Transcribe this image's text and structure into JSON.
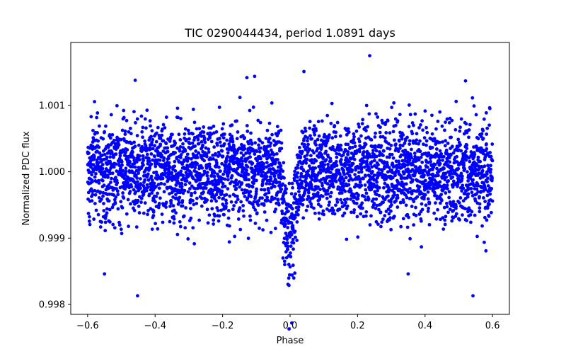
{
  "chart_data": {
    "type": "scatter",
    "title": "TIC 0290044434, period 1.0891 days",
    "xlabel": "Phase",
    "ylabel": "Normalized PDC flux",
    "xlim": [
      -0.65,
      0.65
    ],
    "ylim": [
      0.99785,
      1.00195
    ],
    "xticks": [
      -0.6,
      -0.4,
      -0.2,
      0.0,
      0.2,
      0.4,
      0.6
    ],
    "xtick_labels": [
      "−0.6",
      "−0.4",
      "−0.2",
      "0.0",
      "0.2",
      "0.4",
      "0.6"
    ],
    "yticks": [
      0.998,
      0.999,
      1.0,
      1.001
    ],
    "ytick_labels": [
      "0.998",
      "0.999",
      "1.000",
      "1.001"
    ],
    "grid": false,
    "series": [
      {
        "color": "#0000ff",
        "marker": "circle",
        "phase_range": [
          -0.6,
          0.6
        ],
        "baseline_flux": 1.0,
        "scatter_sd": 0.00036,
        "transit": {
          "center_phase": 0.0,
          "depth": 0.00115,
          "half_width_phase": 0.04,
          "min_flux_observed": 0.99763
        },
        "notable_points": [
          {
            "x": 0.236,
            "y": 1.00175
          },
          {
            "x": -0.105,
            "y": 1.00144
          },
          {
            "x": -0.128,
            "y": 1.00142
          },
          {
            "x": -0.459,
            "y": 1.00138
          },
          {
            "x": 0.52,
            "y": 1.00137
          },
          {
            "x": -0.003,
            "y": 0.99763
          },
          {
            "x": 0.005,
            "y": 0.99772
          },
          {
            "x": -0.452,
            "y": 0.99813
          },
          {
            "x": 0.542,
            "y": 0.99813
          },
          {
            "x": -0.55,
            "y": 0.99846
          },
          {
            "x": 0.35,
            "y": 0.99846
          }
        ]
      }
    ]
  }
}
